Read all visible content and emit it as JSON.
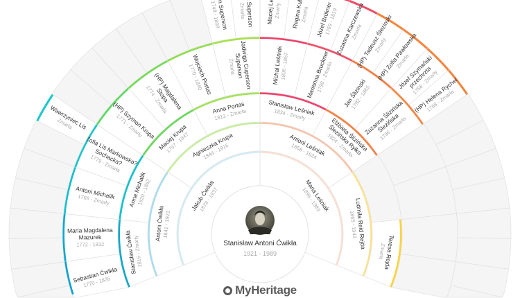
{
  "root": {
    "name": "Stanisław Antoni Ćwikła",
    "years": "1921 - 1989"
  },
  "logo": "MyHeritage",
  "colors": {
    "empty_fill": "#f5f5f5",
    "border": "#e3e3e3",
    "name": "#333333",
    "years": "#aaaaaa"
  },
  "generations": [
    [
      {
        "i": 1,
        "name": [
          "Jakub Ćwikła"
        ],
        "years": "1878 - 1937",
        "color": "#d3ecf5"
      },
      {
        "i": 2,
        "name": [
          "Maria Leśniak"
        ],
        "years": "1896 - 1983",
        "color": "#fbe0d2"
      }
    ],
    [
      {
        "i": 1,
        "name": [
          "Antoni Ćwikła"
        ],
        "years": "1841 - 1921",
        "color": "#a6dced"
      },
      {
        "i": 2,
        "name": [
          "Agnieszka Krupa"
        ],
        "years": "1844 - 1916",
        "color": "#c6ef9a"
      },
      {
        "i": 3,
        "name": [
          "Antoni Leśniak"
        ],
        "years": "1858 - 1924",
        "color": "#f8c2a8"
      },
      {
        "i": 4,
        "name": [
          "Ludmiła Reid Rejda"
        ],
        "years": "1865 - 1942",
        "color": "#fde28c"
      }
    ],
    [
      {
        "i": 1,
        "name": [
          "Stanisław Ćwikła"
        ],
        "years": "1816 - Zmarły",
        "color": "#11a8cb"
      },
      {
        "i": 2,
        "name": [
          "Anna Michalik"
        ],
        "years": "1820 - 1862",
        "color": "#12c2cc"
      },
      {
        "i": 3,
        "name": [
          "Maciej Krupa"
        ],
        "years": "1797 - 1847",
        "color": "#6ad95a"
      },
      {
        "i": 4,
        "name": [
          "Anna Portas"
        ],
        "years": "1813 - Zmarła",
        "color": "#a5e25c"
      },
      {
        "i": 5,
        "name": [
          "Stanisław Leśniak"
        ],
        "years": "1834 - Zmarły",
        "color": "#f0426c"
      },
      {
        "i": 6,
        "name": [
          "Elżbieta Ślizińska",
          "Ślezińska Ryłko"
        ],
        "years": "1824 - Zmarła",
        "color": "#f6803f"
      },
      {
        "i": 8,
        "name": [
          "Teresa Rejda"
        ],
        "years": "Zmarła",
        "color": "#fcd33c"
      }
    ],
    [
      {
        "i": 1,
        "name": [
          "Sebastian Ćwikła"
        ],
        "years": "1770 - 1835",
        "color": "#0aa2d2"
      },
      {
        "i": 2,
        "name": [
          "Maria Magdalena",
          "Mazurek"
        ],
        "years": "1772 - 1832",
        "color": "#0aa8d0"
      },
      {
        "i": 3,
        "name": [
          "Antoni Michalik"
        ],
        "years": "1766 - Zmarły",
        "color": "#14bfcf"
      },
      {
        "i": 4,
        "name": [
          "Zofia Lis Markowska?",
          "Sochacka?"
        ],
        "years": "1779 - Zmarła",
        "color": "#18c6cc"
      },
      {
        "i": 5,
        "name": [
          "(HP) Szymon Krupa"
        ],
        "years": "1771 - Zmarły",
        "color": "#5cd860"
      },
      {
        "i": 6,
        "name": [
          "(HP) Magdalena",
          "Stopa"
        ],
        "years": "1774 - Zmarła",
        "color": "#74db55"
      },
      {
        "i": 7,
        "name": [
          "Wojciech Portas"
        ],
        "years": "1770 - 1840",
        "color": "#90de4e"
      },
      {
        "i": 8,
        "name": [
          "Jadwiga Cuperson",
          "Superson"
        ],
        "years": "Zmarła",
        "color": "#a6e24a"
      },
      {
        "i": 9,
        "name": [
          "Michał Leśniak"
        ],
        "years": "1808 - 1857",
        "color": "#f0406a"
      },
      {
        "i": 10,
        "name": [
          "Marianna Bruckner"
        ],
        "years": "1798 - Zmarła",
        "color": "#f24d66"
      },
      {
        "i": 11,
        "name": [
          "Jan Ślizinski"
        ],
        "years": "1792 - 1865",
        "color": "#f57c40"
      },
      {
        "i": 12,
        "name": [
          "Zuzanna Ślizińska",
          "Ślezińska"
        ],
        "years": "1796 - Zmarła",
        "color": "#f7843c"
      }
    ],
    [
      {
        "i": 8,
        "name": [
          "Wawrzyniec Lis"
        ],
        "years": "Zmarła",
        "color": "#19c8d0"
      },
      {
        "i": 15,
        "name": [
          "on Superson"
        ],
        "years": "1748 - 1808",
        "color": "#8cdc4c"
      },
      {
        "i": 16,
        "name": [
          "na Superson"
        ],
        "years": "Zmarła",
        "color": "#9ade4a"
      },
      {
        "i": 17,
        "name": [
          "Maciej Leś"
        ],
        "years": "Zmarły",
        "color": "#f0406a"
      },
      {
        "i": 18,
        "name": [
          "Regina Kub"
        ],
        "years": "Zmarła",
        "color": "#f0406a"
      },
      {
        "i": 19,
        "name": [
          "Józef Brükner"
        ],
        "years": "1769 - 1819",
        "color": "#f24a66"
      },
      {
        "i": 20,
        "name": [
          "Zuzanna Karczewska"
        ],
        "years": "Zmarła",
        "color": "#f24a66"
      },
      {
        "i": 21,
        "name": [
          "(HP) Tadeusz Ślezinski"
        ],
        "years": "Zmarły",
        "color": "#f7843c"
      },
      {
        "i": 22,
        "name": [
          "(HP) Zofia Pawłowska"
        ],
        "years": "Zmarła",
        "color": "#f7843c"
      },
      {
        "i": 23,
        "name": [
          "Józef Szymański",
          "przechrzta"
        ],
        "years": "1758 - Zmarły",
        "color": "#f7843c"
      },
      {
        "i": 24,
        "name": [
          "(HP) Helena Rychel"
        ],
        "years": "1768 - Zmarła",
        "color": "#f7843c"
      }
    ]
  ]
}
